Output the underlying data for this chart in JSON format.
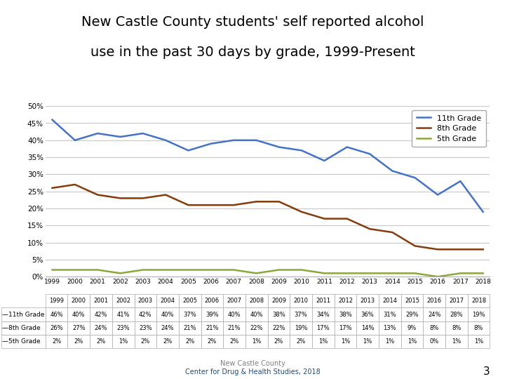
{
  "title_line1": "New Castle County students' self reported alcohol",
  "title_line2": "use in the past 30 days by grade, 1999-Present",
  "years": [
    1999,
    2000,
    2001,
    2002,
    2003,
    2004,
    2005,
    2006,
    2007,
    2008,
    2009,
    2010,
    2011,
    2012,
    2013,
    2014,
    2015,
    2016,
    2017,
    2018
  ],
  "grade11": [
    46,
    40,
    42,
    41,
    42,
    40,
    37,
    39,
    40,
    40,
    38,
    37,
    34,
    38,
    36,
    31,
    29,
    24,
    28,
    19
  ],
  "grade8": [
    26,
    27,
    24,
    23,
    23,
    24,
    21,
    21,
    21,
    22,
    22,
    19,
    17,
    17,
    14,
    13,
    9,
    8,
    8,
    8
  ],
  "grade5": [
    2,
    2,
    2,
    1,
    2,
    2,
    2,
    2,
    2,
    1,
    2,
    2,
    1,
    1,
    1,
    1,
    1,
    0,
    1,
    1
  ],
  "color11": "#4472C4",
  "color8": "#843C0C",
  "color5": "#8CA83C",
  "legend11": "11th Grade",
  "legend8": "8th Grade",
  "legend5": "5th Grade",
  "ylim": [
    0,
    50
  ],
  "yticks": [
    0,
    5,
    10,
    15,
    20,
    25,
    30,
    35,
    40,
    45,
    50
  ],
  "page_num": "3",
  "bg_color": "#FFFFFF",
  "grid_color": "#C8C8C8",
  "footer1": "New Castle County",
  "footer2": "Center for Drug & Health Studies, 2018"
}
